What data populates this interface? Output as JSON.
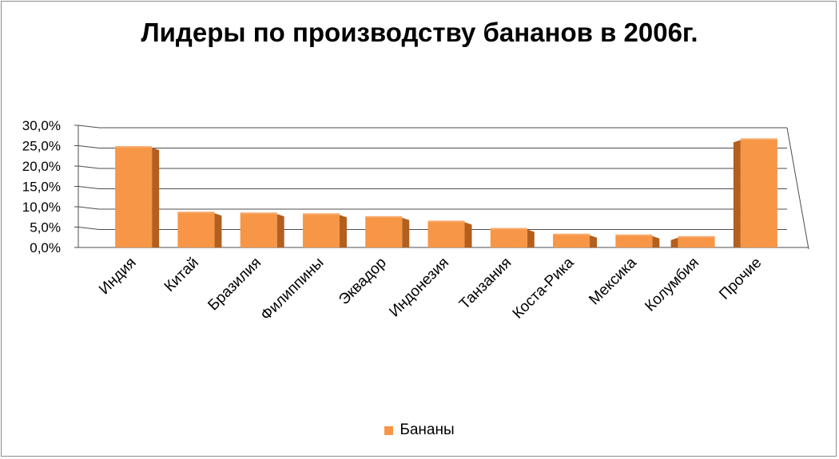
{
  "chart_data": {
    "type": "bar",
    "title": "Лидеры по производству бананов в 2006г.",
    "categories": [
      "Индия",
      "Китай",
      "Бразилия",
      "Филиппины",
      "Эквадор",
      "Индонезия",
      "Танзания",
      "Коста-Рика",
      "Мексика",
      "Колумбия",
      "Прочие"
    ],
    "series": [
      {
        "name": "Бананы",
        "values": [
          24.5,
          8.4,
          8.2,
          8.0,
          7.3,
          6.2,
          4.4,
          3.0,
          2.8,
          2.4,
          26.4
        ]
      }
    ],
    "ylim": [
      0,
      30
    ],
    "yticks": [
      "0,0%",
      "5,0%",
      "10,0%",
      "15,0%",
      "20,0%",
      "25,0%",
      "30,0%"
    ],
    "grid": true,
    "legend_position": "bottom",
    "colors": {
      "bar_front": "#F79646",
      "bar_top": "#F9A96B",
      "bar_side": "#B35F1E",
      "grid": "#4d4d4d"
    }
  }
}
